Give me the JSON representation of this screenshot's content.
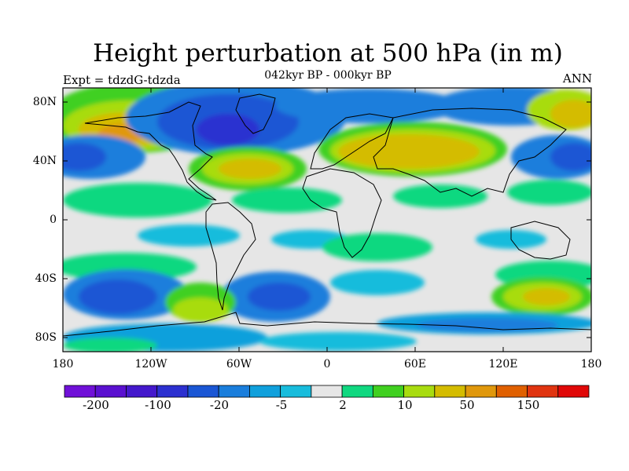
{
  "title": "Height perturbation at 500 hPa (in m)",
  "subtitle": "042kyr BP - 000kyr BP",
  "left_label": "Expt = tdzdG-tdzda",
  "right_label": "ANN",
  "lat_ticks": [
    "80N",
    "40N",
    "0",
    "40S",
    "80S"
  ],
  "lon_ticks": [
    "180",
    "120W",
    "60W",
    "0",
    "60E",
    "120E",
    "180"
  ],
  "colorbar": {
    "colors": [
      "#7010d8",
      "#5a10d0",
      "#4418cc",
      "#2c30d0",
      "#1a56d4",
      "#1a7edc",
      "#10a0dc",
      "#18bcdc",
      "#e6e6e6",
      "#10d880",
      "#40d020",
      "#a8dc10",
      "#d4bc00",
      "#e0980c",
      "#e06000",
      "#e03410",
      "#e00808"
    ],
    "labels": [
      "-200",
      "-100",
      "-20",
      "-5",
      "2",
      "10",
      "50",
      "150"
    ]
  },
  "palette": {
    "light_gray": "#e6e6e6",
    "cyan": "#18bcdc",
    "light_blue": "#10a0dc",
    "mid_blue": "#1a7edc",
    "blue": "#1a56d4",
    "dark_blue": "#2c30d0",
    "teal_green": "#10d880",
    "green": "#40d020",
    "yellow_green": "#a8dc10",
    "gold": "#d4bc00",
    "orange": "#e0980c"
  }
}
